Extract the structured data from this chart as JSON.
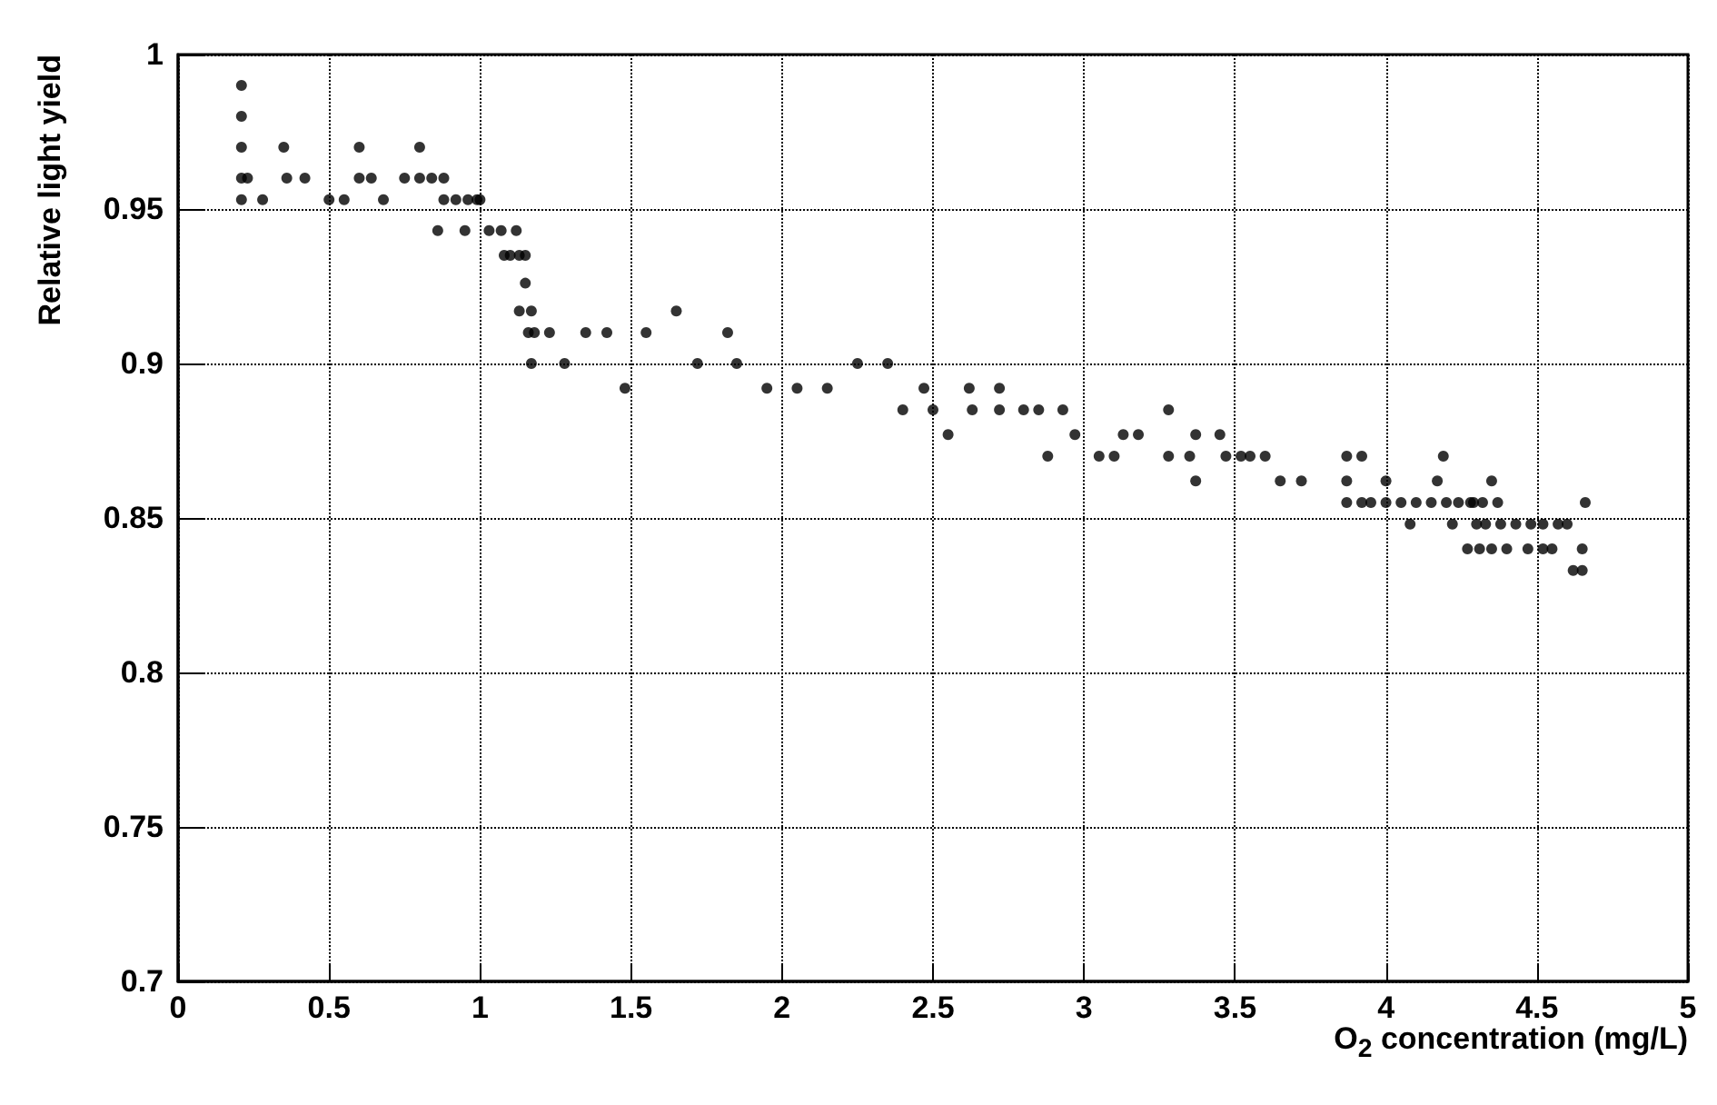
{
  "chart_data": {
    "type": "scatter",
    "xlabel": "O$_{2}$ concentration (mg/L)",
    "ylabel": "Relative light yield",
    "xlim": [
      0,
      5
    ],
    "xticks": [
      0,
      0.5,
      1,
      1.5,
      2,
      2.5,
      3,
      3.5,
      4,
      4.5,
      5
    ],
    "ylim": [
      0.7,
      1
    ],
    "yticks": [
      0.7,
      0.75,
      0.8,
      0.85,
      0.9,
      0.95,
      1
    ],
    "grid": true,
    "marker": "circle",
    "series": [
      {
        "color": "#000000",
        "x": [
          0.21,
          0.21,
          0.21,
          0.21,
          0.21,
          0.23,
          0.28,
          0.35,
          0.36,
          0.42,
          0.5,
          0.55,
          0.6,
          0.6,
          0.64,
          0.68,
          0.75,
          0.8,
          0.8,
          0.84,
          0.86,
          0.88,
          0.88,
          0.92,
          0.95,
          0.96,
          0.99,
          1.0,
          1.03,
          1.07,
          1.08,
          1.1,
          1.12,
          1.13,
          1.15,
          1.13,
          1.15,
          1.17,
          1.16,
          1.18,
          1.17,
          1.23,
          1.28,
          1.35,
          1.42,
          1.48,
          1.55,
          1.65,
          1.72,
          1.82,
          1.85,
          1.95,
          2.05,
          2.15,
          2.25,
          2.35,
          2.4,
          2.47,
          2.5,
          2.55,
          2.62,
          2.63,
          2.72,
          2.72,
          2.8,
          2.85,
          2.88,
          2.93,
          2.97,
          3.05,
          3.1,
          3.13,
          3.18,
          3.28,
          3.28,
          3.35,
          3.37,
          3.37,
          3.45,
          3.47,
          3.52,
          3.55,
          3.6,
          3.65,
          3.72,
          3.87,
          3.87,
          3.87,
          3.92,
          3.92,
          3.95,
          4.0,
          4.0,
          4.05,
          4.08,
          4.1,
          4.15,
          4.17,
          4.19,
          4.2,
          4.22,
          4.24,
          4.27,
          4.28,
          4.29,
          4.3,
          4.31,
          4.32,
          4.33,
          4.35,
          4.35,
          4.37,
          4.38,
          4.4,
          4.43,
          4.47,
          4.48,
          4.52,
          4.52,
          4.55,
          4.57,
          4.6,
          4.62,
          4.65,
          4.65,
          4.66
        ],
        "values": [
          0.99,
          0.98,
          0.97,
          0.96,
          0.953,
          0.96,
          0.953,
          0.97,
          0.96,
          0.96,
          0.953,
          0.953,
          0.97,
          0.96,
          0.96,
          0.953,
          0.96,
          0.97,
          0.96,
          0.96,
          0.943,
          0.96,
          0.953,
          0.953,
          0.943,
          0.953,
          0.953,
          0.953,
          0.943,
          0.943,
          0.935,
          0.935,
          0.943,
          0.935,
          0.935,
          0.917,
          0.926,
          0.917,
          0.91,
          0.91,
          0.9,
          0.91,
          0.9,
          0.91,
          0.91,
          0.892,
          0.91,
          0.917,
          0.9,
          0.91,
          0.9,
          0.892,
          0.892,
          0.892,
          0.9,
          0.9,
          0.885,
          0.892,
          0.885,
          0.877,
          0.892,
          0.885,
          0.892,
          0.885,
          0.885,
          0.885,
          0.87,
          0.885,
          0.877,
          0.87,
          0.87,
          0.877,
          0.877,
          0.885,
          0.87,
          0.87,
          0.877,
          0.862,
          0.877,
          0.87,
          0.87,
          0.87,
          0.87,
          0.862,
          0.862,
          0.87,
          0.862,
          0.855,
          0.87,
          0.855,
          0.855,
          0.862,
          0.855,
          0.855,
          0.848,
          0.855,
          0.855,
          0.862,
          0.87,
          0.855,
          0.848,
          0.855,
          0.84,
          0.855,
          0.855,
          0.848,
          0.84,
          0.855,
          0.848,
          0.84,
          0.862,
          0.855,
          0.848,
          0.84,
          0.848,
          0.84,
          0.848,
          0.848,
          0.84,
          0.84,
          0.848,
          0.848,
          0.833,
          0.84,
          0.833,
          0.855
        ]
      }
    ]
  }
}
